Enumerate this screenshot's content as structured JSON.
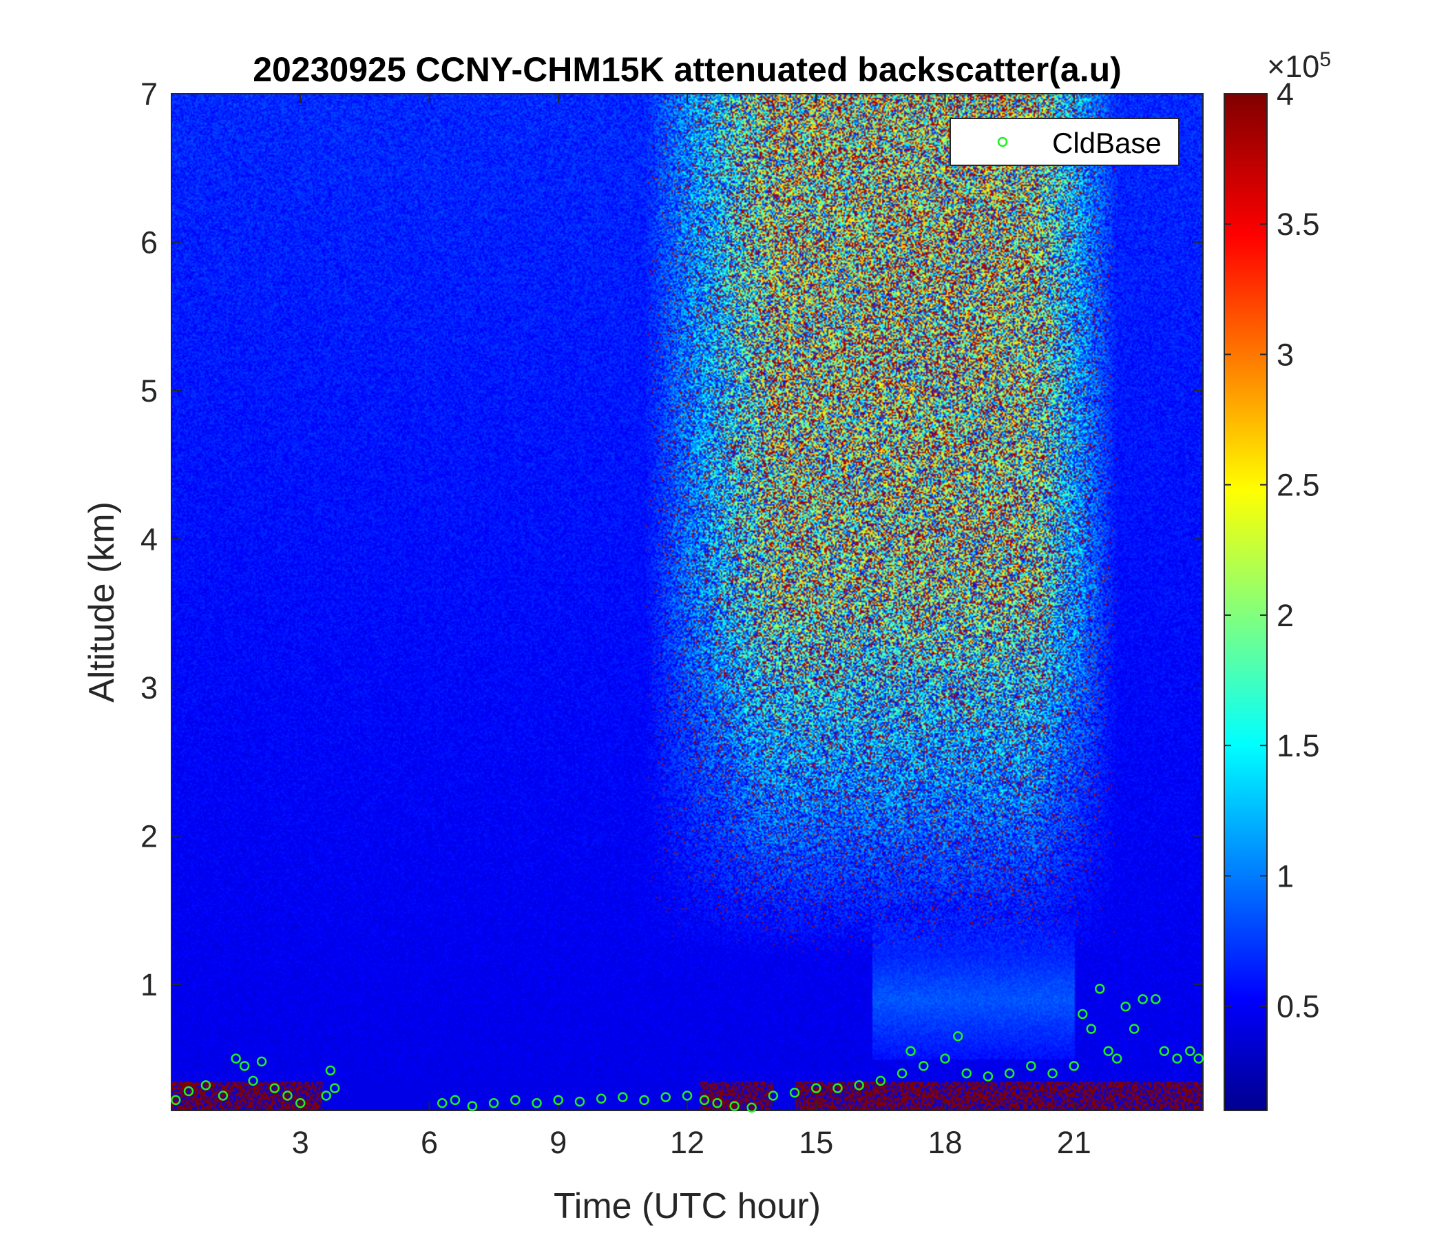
{
  "chart_data": {
    "type": "heatmap",
    "title": "20230925 CCNY-CHM15K attenuated backscatter(a.u)",
    "xlabel": "Time (UTC hour)",
    "ylabel": "Altitude (km)",
    "xlim": [
      0,
      24
    ],
    "ylim": [
      0.15,
      7
    ],
    "xticks": [
      3,
      6,
      9,
      12,
      15,
      18,
      21
    ],
    "xtick_labels": [
      "3",
      "6",
      "9",
      "12",
      "15",
      "18",
      "21"
    ],
    "yticks": [
      1,
      2,
      3,
      4,
      5,
      6,
      7
    ],
    "ytick_labels": [
      "1",
      "2",
      "3",
      "4",
      "5",
      "6",
      "7"
    ],
    "colorbar": {
      "colormap": "jet",
      "clim": [
        0.1,
        4
      ],
      "exponent_label": "×10",
      "exponent_power": "5",
      "ticks": [
        0.5,
        1,
        1.5,
        2,
        2.5,
        3,
        3.5,
        4
      ],
      "tick_labels": [
        "0.5",
        "1",
        "1.5",
        "2",
        "2.5",
        "3",
        "3.5",
        "4"
      ]
    },
    "legend": {
      "location": "top-right",
      "entries": [
        "CldBase"
      ],
      "marker": "circle",
      "marker_color": "#22ee22"
    },
    "series": [
      {
        "name": "CldBase",
        "type": "scatter",
        "points": [
          [
            0.1,
            0.22
          ],
          [
            0.4,
            0.28
          ],
          [
            0.8,
            0.32
          ],
          [
            1.2,
            0.25
          ],
          [
            1.5,
            0.5
          ],
          [
            1.7,
            0.45
          ],
          [
            1.9,
            0.35
          ],
          [
            2.1,
            0.48
          ],
          [
            2.4,
            0.3
          ],
          [
            2.7,
            0.25
          ],
          [
            3.0,
            0.2
          ],
          [
            3.6,
            0.25
          ],
          [
            3.7,
            0.42
          ],
          [
            3.8,
            0.3
          ],
          [
            6.3,
            0.2
          ],
          [
            6.6,
            0.22
          ],
          [
            7.0,
            0.18
          ],
          [
            7.5,
            0.2
          ],
          [
            8.0,
            0.22
          ],
          [
            8.5,
            0.2
          ],
          [
            9.0,
            0.22
          ],
          [
            9.5,
            0.21
          ],
          [
            10.0,
            0.23
          ],
          [
            10.5,
            0.24
          ],
          [
            11.0,
            0.22
          ],
          [
            11.5,
            0.24
          ],
          [
            12.0,
            0.25
          ],
          [
            12.4,
            0.22
          ],
          [
            12.7,
            0.2
          ],
          [
            13.1,
            0.18
          ],
          [
            13.5,
            0.17
          ],
          [
            14.0,
            0.25
          ],
          [
            14.5,
            0.27
          ],
          [
            15.0,
            0.3
          ],
          [
            15.5,
            0.3
          ],
          [
            16.0,
            0.32
          ],
          [
            16.5,
            0.35
          ],
          [
            17.0,
            0.4
          ],
          [
            17.2,
            0.55
          ],
          [
            17.5,
            0.45
          ],
          [
            18.0,
            0.5
          ],
          [
            18.3,
            0.65
          ],
          [
            18.5,
            0.4
          ],
          [
            19.0,
            0.38
          ],
          [
            19.5,
            0.4
          ],
          [
            20.0,
            0.45
          ],
          [
            20.5,
            0.4
          ],
          [
            21.0,
            0.45
          ],
          [
            21.2,
            0.8
          ],
          [
            21.4,
            0.7
          ],
          [
            21.6,
            0.97
          ],
          [
            21.8,
            0.55
          ],
          [
            22.0,
            0.5
          ],
          [
            22.2,
            0.85
          ],
          [
            22.4,
            0.7
          ],
          [
            22.6,
            0.9
          ],
          [
            22.9,
            0.9
          ],
          [
            23.1,
            0.55
          ],
          [
            23.4,
            0.5
          ],
          [
            23.7,
            0.55
          ],
          [
            23.9,
            0.5
          ]
        ]
      }
    ]
  }
}
